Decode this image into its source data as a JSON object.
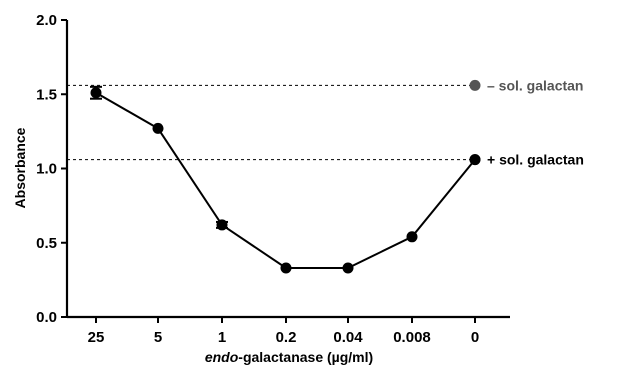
{
  "chart_data": {
    "type": "line",
    "xlabel_italic": "endo",
    "xlabel_rest": "-galactanase (µg/ml)",
    "ylabel": "Absorbance",
    "categories": [
      "25",
      "5",
      "1",
      "0.2",
      "0.04",
      "0.008",
      "0"
    ],
    "ylim": [
      0.0,
      2.0
    ],
    "yticks": [
      "0.0",
      "0.5",
      "1.0",
      "1.5",
      "2.0"
    ],
    "series": [
      {
        "values": [
          1.51,
          1.27,
          0.62,
          0.33,
          0.33,
          0.54,
          1.06
        ],
        "errors": [
          0.04,
          0.01,
          0.02,
          0.01,
          0.01,
          0.01,
          0.01
        ],
        "color": "#000000"
      }
    ],
    "reference_lines": [
      {
        "label": "– sol. galactan",
        "value": 1.56,
        "color": "#555555"
      },
      {
        "label": "+ sol. galactan",
        "value": 1.06,
        "color": "#000000"
      }
    ],
    "grid": false
  }
}
